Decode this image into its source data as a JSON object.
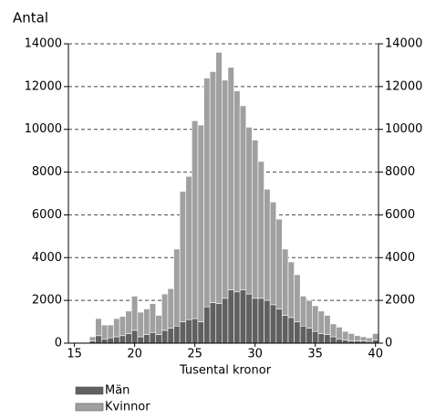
{
  "chart_data": {
    "type": "histogram",
    "ylabel": "Antal",
    "xlabel": "Tusental kronor",
    "bins": [
      14.75,
      15.25,
      15.75,
      16.25,
      16.75,
      17.25,
      17.75,
      18.25,
      18.75,
      19.25,
      19.75,
      20.25,
      20.75,
      21.25,
      21.75,
      22.25,
      22.75,
      23.25,
      23.75,
      24.25,
      24.75,
      25.25,
      25.75,
      26.25,
      26.75,
      27.25,
      27.75,
      28.25,
      28.75,
      29.25,
      29.75,
      30.25,
      30.75,
      31.25,
      31.75,
      32.25,
      32.75,
      33.25,
      33.75,
      34.25,
      34.75,
      35.25,
      35.75,
      36.25,
      36.75,
      37.25,
      37.75,
      38.25,
      38.75,
      39.25,
      39.75,
      40.25
    ],
    "series": [
      {
        "name": "Män",
        "color": "#606060",
        "values": [
          20,
          20,
          20,
          100,
          350,
          200,
          250,
          300,
          350,
          450,
          600,
          300,
          400,
          500,
          400,
          600,
          700,
          800,
          1000,
          1100,
          1150,
          1000,
          1700,
          1900,
          1850,
          2100,
          2500,
          2400,
          2500,
          2300,
          2100,
          2100,
          2000,
          1800,
          1600,
          1300,
          1200,
          1000,
          800,
          700,
          550,
          450,
          400,
          300,
          200,
          150,
          100,
          100,
          100,
          80,
          150
        ]
      },
      {
        "name": "Kvinnor",
        "color": "#a0a0a0",
        "values": [
          30,
          30,
          30,
          200,
          800,
          650,
          600,
          850,
          900,
          1050,
          1600,
          1150,
          1200,
          1350,
          900,
          1700,
          1850,
          3600,
          6100,
          6700,
          9250,
          9200,
          10700,
          10800,
          11750,
          10200,
          10400,
          9400,
          8600,
          7800,
          7400,
          6400,
          5200,
          4800,
          4200,
          3100,
          2600,
          2200,
          1400,
          1300,
          1200,
          1050,
          900,
          600,
          550,
          400,
          350,
          250,
          200,
          170,
          300
        ]
      }
    ],
    "stacked": true,
    "xlim": [
      14.5,
      40.25
    ],
    "xticks": [
      15,
      20,
      25,
      30,
      35,
      40
    ],
    "ylim": [
      0,
      14000
    ],
    "yticks": [
      0,
      2000,
      4000,
      6000,
      8000,
      10000,
      12000,
      14000
    ],
    "grid": true
  }
}
